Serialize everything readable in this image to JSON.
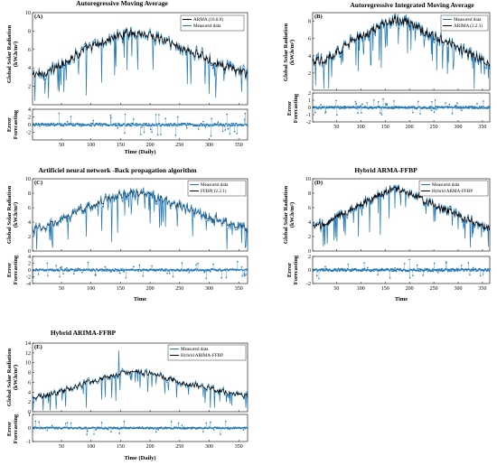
{
  "charts": [
    {
      "id": "A",
      "label": "(A)",
      "title": "Autoregressive Moving Average",
      "ylabel_lines": [
        "Global Solar Radiation",
        "(kW.h/m²)"
      ],
      "err_ylabel_lines": [
        "Error",
        "Forecasting"
      ],
      "xlabel": "Time (Daily)",
      "ylim": [
        0,
        10
      ],
      "yticks": [
        2,
        4,
        6,
        8,
        10
      ],
      "err_ylim": [
        -4,
        4
      ],
      "err_yticks": [
        -2,
        0,
        2,
        4
      ],
      "legend": [
        {
          "name": "ARMA (16.0.0)",
          "color": "#000000"
        },
        {
          "name": "Measured data",
          "color": "#1f77b4"
        }
      ],
      "series_order": [
        "measured",
        "model"
      ],
      "spikes": [
        [
          22,
          1.2
        ],
        [
          44,
          1.6
        ],
        [
          92,
          1.0
        ],
        [
          118,
          2.4
        ],
        [
          140,
          3.2
        ],
        [
          205,
          3.8
        ],
        [
          312,
          2.8
        ],
        [
          355,
          1.4
        ]
      ],
      "err_range": 3.0
    },
    {
      "id": "B",
      "label": "(B)",
      "title": "Autoregressive  Integrated Moving Average",
      "ylabel_lines": [
        "Global Solar Radiation",
        "(kW.h/m²)"
      ],
      "err_ylabel_lines": [
        "Error",
        "Forecasting"
      ],
      "xlabel": "",
      "ylim": [
        0,
        9
      ],
      "yticks": [
        2,
        4,
        6,
        8
      ],
      "err_ylim": [
        -2,
        2
      ],
      "err_yticks": [
        -2,
        -1,
        0,
        1,
        2
      ],
      "legend": [
        {
          "name": "Measured data",
          "color": "#1f77b4"
        },
        {
          "name": "ARIMA (2.2.1)",
          "color": "#000000"
        }
      ],
      "series_order": [
        "measured",
        "model"
      ],
      "spikes": [
        [
          40,
          1.5
        ],
        [
          95,
          2.2
        ],
        [
          120,
          3.0
        ],
        [
          142,
          2.6
        ],
        [
          280,
          3.2
        ],
        [
          330,
          2.5
        ]
      ],
      "err_range": 1.2
    },
    {
      "id": "C",
      "label": "(C)",
      "title": "Artificiel neural network -Back propagation algorithm",
      "ylabel_lines": [
        "Global Solar Radiation",
        "(kW.h/m²)"
      ],
      "err_ylabel_lines": [
        "Error",
        "Forecasting"
      ],
      "xlabel": "Time",
      "ylim": [
        0,
        10
      ],
      "yticks": [
        0,
        2,
        4,
        6,
        8,
        10
      ],
      "err_ylim": [
        -4,
        4
      ],
      "err_yticks": [
        -4,
        -2,
        0,
        2,
        4
      ],
      "legend": [
        {
          "name": "Measured data",
          "color": "#1f77b4"
        },
        {
          "name": "FFBP(12.2.1)",
          "color": "#000000"
        }
      ],
      "series_order": [
        "model",
        "measured"
      ],
      "spikes": [
        [
          30,
          1.5
        ],
        [
          92,
          2.0
        ],
        [
          118,
          2.8
        ],
        [
          135,
          1.2
        ],
        [
          145,
          2.5
        ],
        [
          362,
          0.6
        ]
      ],
      "err_range": 2.5
    },
    {
      "id": "D",
      "label": "(D)",
      "title": "Hybrid ARMA-FFBP",
      "ylabel_lines": [
        "Global Solar Radiation",
        "(kW.h/m²)"
      ],
      "err_ylabel_lines": [
        "Error",
        "Forecasting"
      ],
      "xlabel": "Time",
      "ylim": [
        0,
        10
      ],
      "yticks": [
        0,
        2,
        4,
        6,
        8,
        10
      ],
      "err_ylim": [
        -2,
        2
      ],
      "err_yticks": [
        -2,
        0,
        2
      ],
      "legend": [
        {
          "name": "Measured data",
          "color": "#1f77b4"
        },
        {
          "name": "Hybrid ARMA-FFBP",
          "color": "#000000"
        }
      ],
      "series_order": [
        "measured",
        "model"
      ],
      "spikes": [
        [
          45,
          1.5
        ],
        [
          95,
          2.0
        ],
        [
          118,
          2.6
        ],
        [
          140,
          2.2
        ],
        [
          300,
          3.0
        ],
        [
          362,
          0.6
        ]
      ],
      "err_range": 1.6
    },
    {
      "id": "E",
      "label": "(E)",
      "title": "Hybrid ARIMA-FFBP",
      "ylabel_lines": [
        "Global Solar Radiation",
        "(kW.h/m²)"
      ],
      "err_ylabel_lines": [
        "Error",
        "Forecasting"
      ],
      "xlabel": "Time (Daily)",
      "ylim": [
        0,
        14
      ],
      "yticks": [
        0,
        2,
        4,
        6,
        8,
        10,
        12,
        14
      ],
      "err_ylim": [
        -1,
        1
      ],
      "err_yticks": [
        -1,
        0,
        1
      ],
      "legend": [
        {
          "name": "Measured data",
          "color": "#1f77b4"
        },
        {
          "name": "Hybrid ARIMA-FFBP",
          "color": "#000000"
        }
      ],
      "series_order": [
        "measured",
        "model"
      ],
      "spikes": [
        [
          92,
          0.8
        ],
        [
          118,
          2.5
        ],
        [
          135,
          2.8
        ],
        [
          142,
          2.2
        ],
        [
          147,
          12.5
        ],
        [
          290,
          3.0
        ],
        [
          362,
          0.8
        ]
      ],
      "err_range": 0.5
    }
  ],
  "chart_data": [
    {
      "type": "line",
      "panel": "A",
      "title": "Autoregressive Moving Average",
      "xlabel": "Time (Daily)",
      "xticks": [
        50,
        100,
        150,
        200,
        250,
        300,
        350
      ],
      "xlim": [
        1,
        365
      ],
      "ylim": [
        0,
        10
      ],
      "series": [
        {
          "name": "ARMA (16.0.0)",
          "color": "#000000"
        },
        {
          "name": "Measured data",
          "color": "#1f77b4"
        }
      ],
      "profile": {
        "x": [
          1,
          30,
          60,
          90,
          120,
          150,
          170,
          200,
          230,
          260,
          290,
          320,
          350,
          365
        ],
        "y": [
          3.2,
          3.6,
          4.8,
          6.0,
          6.8,
          7.6,
          7.8,
          7.6,
          6.8,
          6.0,
          5.2,
          4.3,
          3.6,
          3.2
        ]
      }
    },
    {
      "type": "line",
      "panel": "B",
      "title": "Autoregressive  Integrated Moving Average",
      "xticks": [
        50,
        100,
        150,
        200,
        250,
        300,
        350
      ],
      "xlim": [
        1,
        365
      ],
      "ylim": [
        0,
        9
      ],
      "series": [
        {
          "name": "Measured data",
          "color": "#1f77b4"
        },
        {
          "name": "ARIMA (2.2.1)",
          "color": "#000000"
        }
      ],
      "profile": {
        "x": [
          1,
          30,
          60,
          90,
          120,
          150,
          170,
          200,
          230,
          260,
          290,
          320,
          350,
          365
        ],
        "y": [
          3.2,
          3.6,
          4.8,
          6.0,
          6.8,
          7.8,
          8.2,
          7.8,
          6.9,
          6.0,
          5.2,
          4.3,
          3.6,
          3.2
        ]
      }
    },
    {
      "type": "line",
      "panel": "C",
      "title": "Artificiel neural network -Back propagation algorithm",
      "xlabel": "Time",
      "xticks": [
        50,
        100,
        150,
        200,
        250,
        300,
        350
      ],
      "xlim": [
        1,
        365
      ],
      "ylim": [
        0,
        10
      ],
      "series": [
        {
          "name": "Measured data",
          "color": "#1f77b4"
        },
        {
          "name": "FFBP(12.2.1)",
          "color": "#000000"
        }
      ],
      "profile": {
        "x": [
          1,
          30,
          60,
          90,
          120,
          150,
          170,
          200,
          230,
          260,
          290,
          320,
          350,
          365
        ],
        "y": [
          3.0,
          3.5,
          4.6,
          6.0,
          7.0,
          7.8,
          8.0,
          7.6,
          6.8,
          5.9,
          5.0,
          4.2,
          3.5,
          3.0
        ]
      }
    },
    {
      "type": "line",
      "panel": "D",
      "title": "Hybrid ARMA-FFBP",
      "xlabel": "Time",
      "xticks": [
        50,
        100,
        150,
        200,
        250,
        300,
        350
      ],
      "xlim": [
        1,
        365
      ],
      "ylim": [
        0,
        10
      ],
      "series": [
        {
          "name": "Measured data",
          "color": "#1f77b4"
        },
        {
          "name": "Hybrid ARMA-FFBP",
          "color": "#000000"
        }
      ],
      "profile": {
        "x": [
          1,
          30,
          60,
          90,
          120,
          150,
          170,
          200,
          230,
          260,
          290,
          320,
          350,
          365
        ],
        "y": [
          3.2,
          3.8,
          5.0,
          6.2,
          7.2,
          8.2,
          8.6,
          8.0,
          7.0,
          6.0,
          5.2,
          4.3,
          3.5,
          3.0
        ]
      }
    },
    {
      "type": "line",
      "panel": "E",
      "title": "Hybrid ARIMA-FFBP",
      "xlabel": "Time (Daily)",
      "xticks": [
        50,
        100,
        150,
        200,
        250,
        300,
        350
      ],
      "xlim": [
        1,
        365
      ],
      "ylim": [
        0,
        14
      ],
      "series": [
        {
          "name": "Measured data",
          "color": "#1f77b4"
        },
        {
          "name": "Hybrid ARIMA-FFBP",
          "color": "#000000"
        }
      ],
      "profile": {
        "x": [
          1,
          30,
          60,
          90,
          120,
          150,
          170,
          200,
          230,
          260,
          290,
          320,
          350,
          365
        ],
        "y": [
          3.0,
          3.5,
          4.5,
          5.8,
          6.8,
          7.8,
          8.2,
          7.8,
          6.8,
          5.8,
          5.0,
          4.2,
          3.5,
          3.0
        ]
      }
    }
  ],
  "xticks": [
    50,
    100,
    150,
    200,
    250,
    300,
    350
  ],
  "colors": {
    "measured": "#1f77b4",
    "model": "#000000",
    "error": "#1f77b4"
  }
}
